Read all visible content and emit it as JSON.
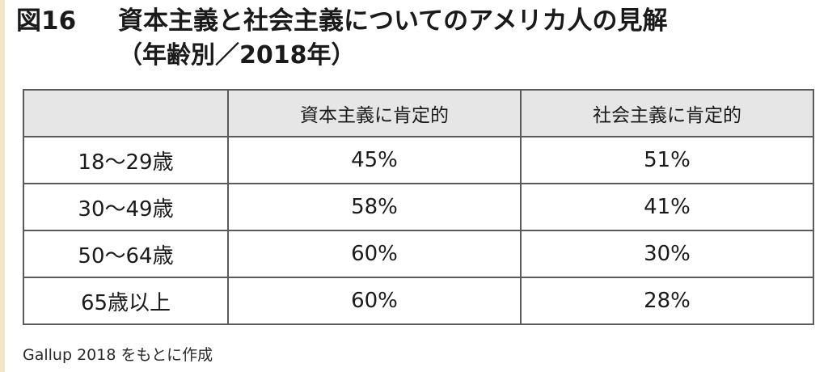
{
  "title": {
    "number": "図16",
    "main": "資本主義と社会主義についてのアメリカ人の見解",
    "sub": "（年齢別／2018年）"
  },
  "chart_data": {
    "type": "table",
    "columns": [
      "",
      "資本主義に肯定的",
      "社会主義に肯定的"
    ],
    "rows": [
      {
        "label": "18〜29歳",
        "values": [
          "45%",
          "51%"
        ]
      },
      {
        "label": "30〜49歳",
        "values": [
          "58%",
          "41%"
        ]
      },
      {
        "label": "50〜64歳",
        "values": [
          "60%",
          "30%"
        ]
      },
      {
        "label": "65歳以上",
        "values": [
          "60%",
          "28%"
        ]
      }
    ]
  },
  "source": "Gallup 2018 をもとに作成"
}
